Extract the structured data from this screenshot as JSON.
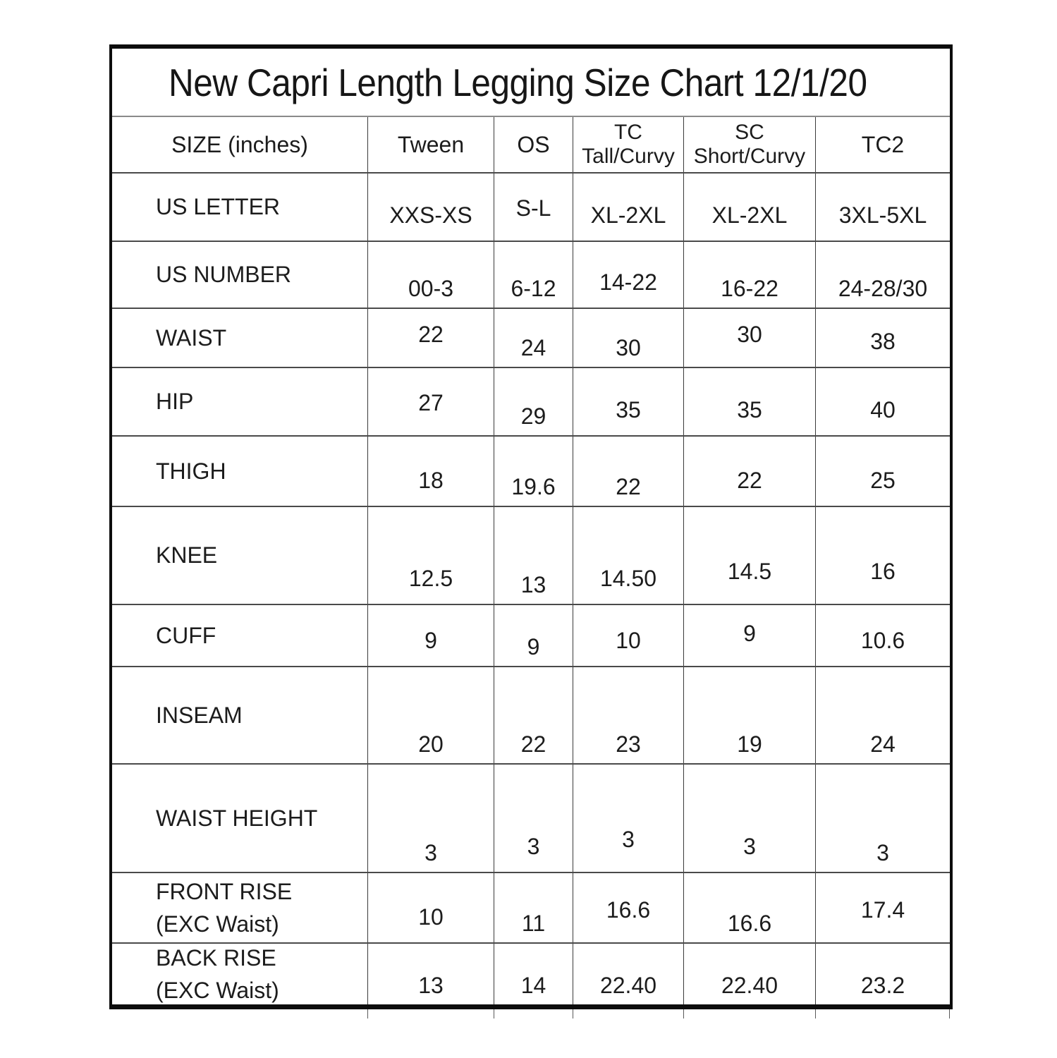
{
  "chart_data": {
    "type": "table",
    "title": "New Capri Length Legging Size Chart 12/1/20",
    "columns": [
      "SIZE (inches)",
      "Tween",
      "OS",
      "TC\nTall/Curvy",
      "SC\nShort/Curvy",
      "TC2"
    ],
    "rows": [
      {
        "label": "US LETTER",
        "values": [
          "XXS-XS",
          "S-L",
          "XL-2XL",
          "XL-2XL",
          "3XL-5XL"
        ]
      },
      {
        "label": "US NUMBER",
        "values": [
          "00-3",
          "6-12",
          "14-22",
          "16-22",
          "24-28/30"
        ]
      },
      {
        "label": "WAIST",
        "values": [
          "22",
          "24",
          "30",
          "30",
          "38"
        ]
      },
      {
        "label": "HIP",
        "values": [
          "27",
          "29",
          "35",
          "35",
          "40"
        ]
      },
      {
        "label": "THIGH",
        "values": [
          "18",
          "19.6",
          "22",
          "22",
          "25"
        ]
      },
      {
        "label": "KNEE",
        "values": [
          "12.5",
          "13",
          "14.50",
          "14.5",
          "16"
        ]
      },
      {
        "label": "CUFF",
        "values": [
          "9",
          "9",
          "10",
          "9",
          "10.6"
        ]
      },
      {
        "label": "INSEAM",
        "values": [
          "20",
          "22",
          "23",
          "19",
          "24"
        ]
      },
      {
        "label": "WAIST HEIGHT",
        "values": [
          "3",
          "3",
          "3",
          "3",
          "3"
        ]
      },
      {
        "label": "FRONT RISE\n(EXC Waist)",
        "values": [
          "10",
          "11",
          "16.6",
          "16.6",
          "17.4"
        ]
      },
      {
        "label": "BACK RISE\n(EXC Waist)",
        "values": [
          "13",
          "14",
          "22.40",
          "22.40",
          "23.2"
        ]
      }
    ]
  }
}
